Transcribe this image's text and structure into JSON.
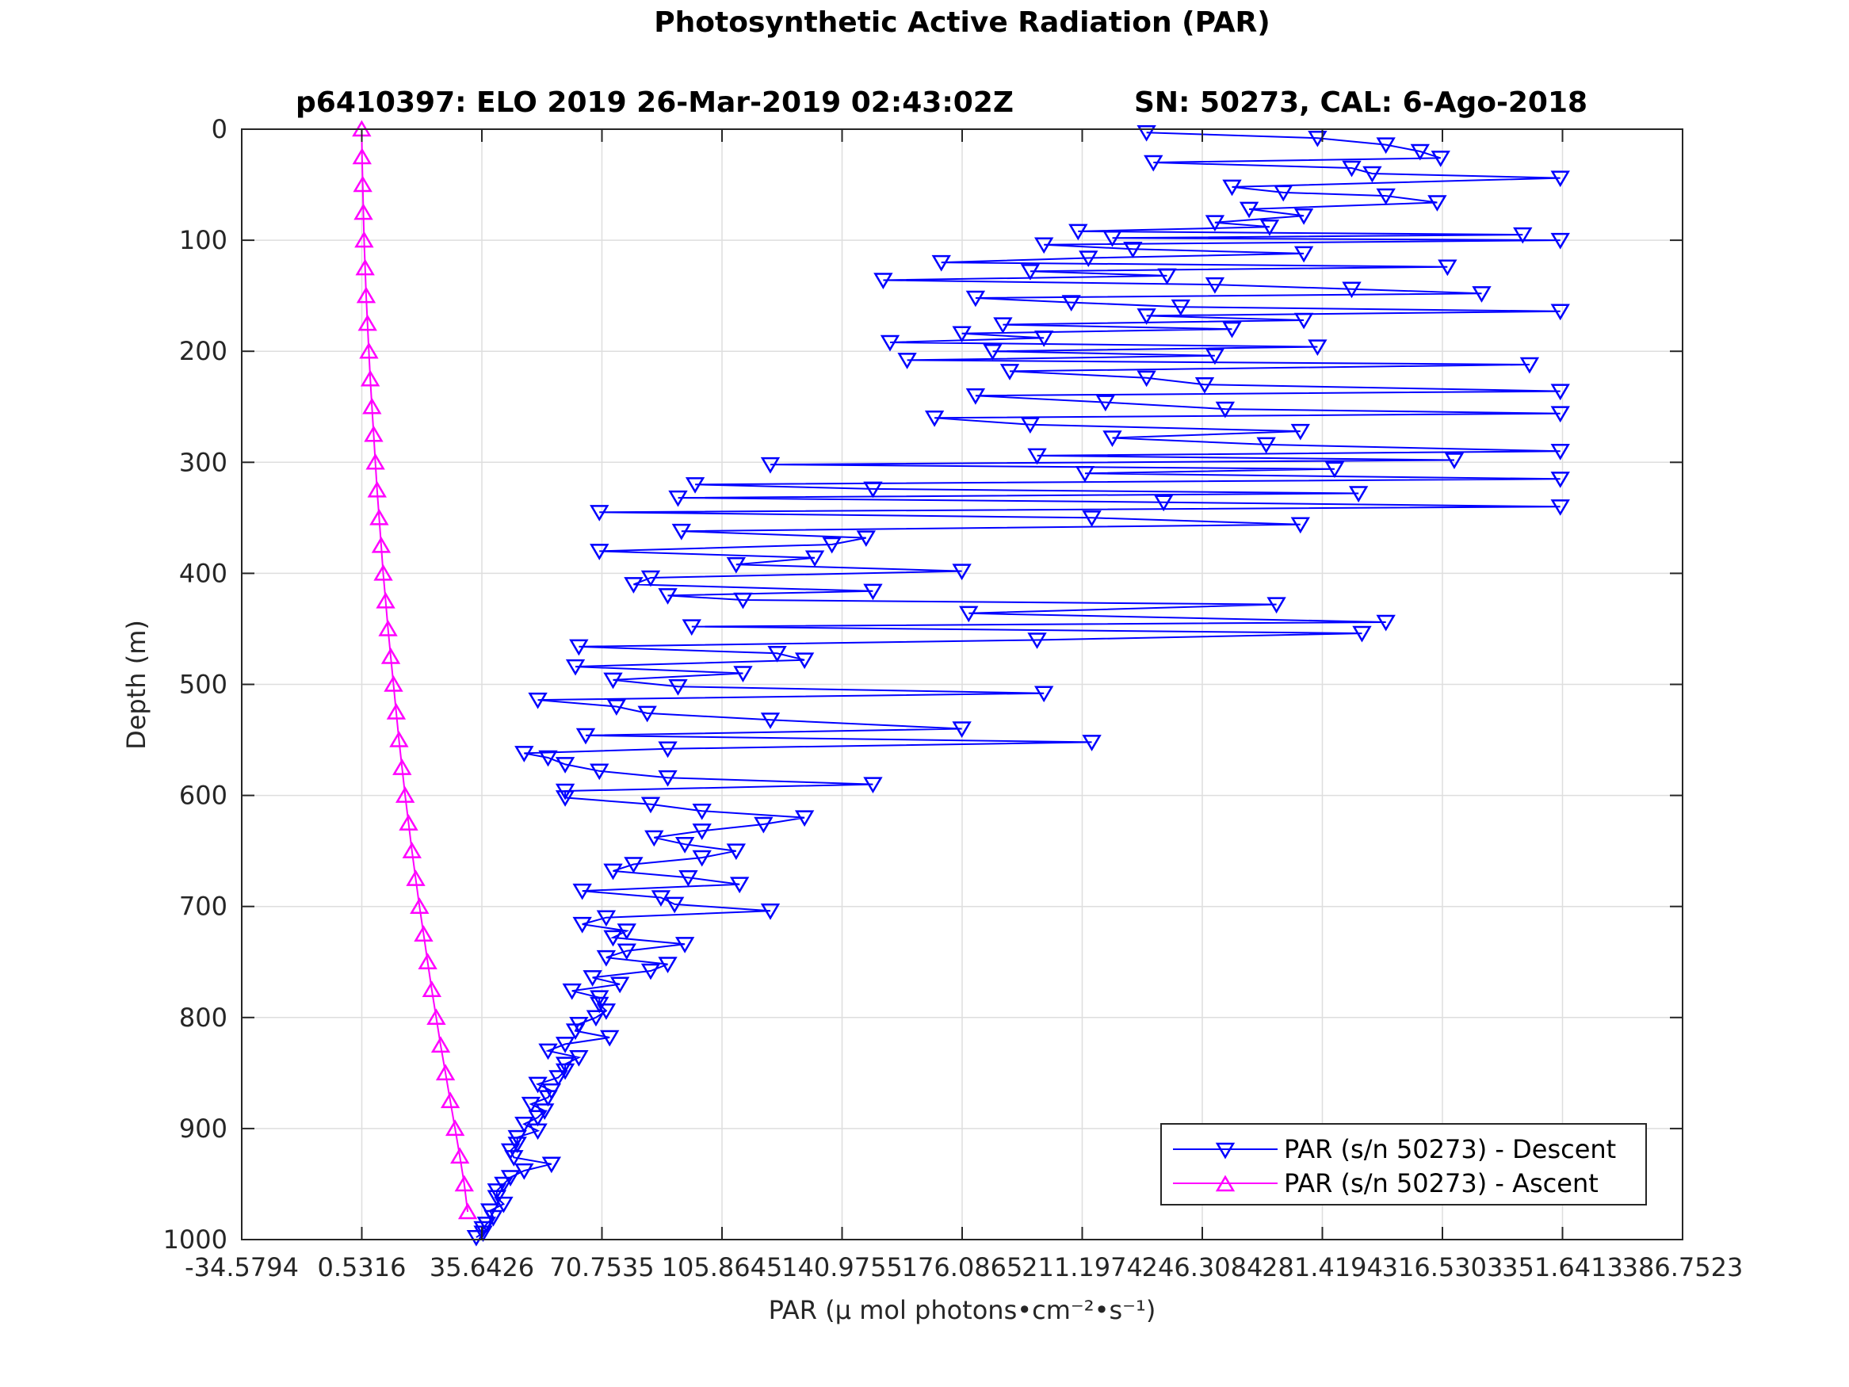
{
  "chart_data": {
    "type": "line",
    "title": "Photosynthetic Active Radiation (PAR)",
    "subtitle_left": "p6410397: ELO 2019 26-Mar-2019 02:43:02Z",
    "subtitle_right": "SN: 50273, CAL: 6-Ago-2018",
    "xlabel": "PAR (μ mol photons•cm⁻²•s⁻¹)",
    "ylabel": "Depth (m)",
    "xlim": [
      -34.5794,
      386.7523
    ],
    "ylim": [
      0,
      1000
    ],
    "y_reversed": true,
    "grid": true,
    "x_ticks": [
      -34.5794,
      0.5316,
      35.6426,
      70.7535,
      105.8645,
      140.9755,
      176.0865,
      211.1974,
      246.3084,
      281.4194,
      316.5303,
      351.6413,
      386.7523
    ],
    "x_tick_labels": [
      "-34.5794",
      "0.5316",
      "35.6426",
      "70.7535",
      "105.8645",
      "140.9755",
      "176.0865",
      "211.1974",
      "246.3084",
      "281.4194",
      "316.5303",
      "351.6413",
      "386.7523"
    ],
    "y_ticks": [
      0,
      100,
      200,
      300,
      400,
      500,
      600,
      700,
      800,
      900,
      1000
    ],
    "y_tick_labels": [
      "0",
      "100",
      "200",
      "300",
      "400",
      "500",
      "600",
      "700",
      "800",
      "900",
      "1000"
    ],
    "legend_position": "bottom-right",
    "series": [
      {
        "name": "PAR (s/n 50273) - Descent",
        "color": "#0000ff",
        "marker": "triangle-down",
        "x": [
          230,
          280,
          300,
          310,
          316,
          232,
          290,
          296,
          351,
          255,
          270,
          300,
          315,
          260,
          276,
          250,
          266,
          210,
          340,
          220,
          351,
          200,
          226,
          276,
          213,
          170,
          318,
          196,
          236,
          153,
          250,
          290,
          328,
          180,
          208,
          240,
          351,
          230,
          276,
          188,
          255,
          176,
          200,
          155,
          280,
          185,
          250,
          160,
          342,
          190,
          230,
          247,
          351,
          180,
          218,
          253,
          351,
          168,
          196,
          275,
          220,
          265,
          351,
          198,
          320,
          120,
          285,
          212,
          351,
          98,
          150,
          292,
          93,
          235,
          351,
          70,
          214,
          275,
          94,
          148,
          138,
          70,
          133,
          110,
          176,
          85,
          80,
          150,
          90,
          112,
          268,
          178,
          300,
          97,
          293,
          198,
          64,
          122,
          130,
          63,
          112,
          74,
          93,
          200,
          52,
          75,
          84,
          120,
          176,
          66,
          214,
          90,
          48,
          55,
          60,
          70,
          90,
          150,
          60,
          60,
          85,
          100,
          130,
          118,
          100,
          86,
          95,
          110,
          100,
          80,
          74,
          96,
          111,
          65,
          88,
          92,
          120,
          72,
          65,
          78,
          74,
          95,
          78,
          72,
          90,
          85,
          68,
          76,
          62,
          70,
          70,
          72,
          69,
          64,
          63,
          73,
          60,
          55,
          64,
          60,
          60,
          58,
          52,
          56,
          55,
          50,
          54,
          52,
          48,
          52,
          46,
          46,
          44,
          45,
          56,
          48,
          44,
          42,
          40,
          40,
          42,
          38,
          39,
          37,
          36,
          36,
          34
        ],
        "y": [
          3,
          8,
          14,
          20,
          26,
          30,
          35,
          40,
          44,
          52,
          57,
          60,
          66,
          72,
          78,
          84,
          88,
          92,
          95,
          98,
          100,
          104,
          108,
          112,
          116,
          120,
          124,
          128,
          132,
          136,
          140,
          144,
          148,
          152,
          156,
          160,
          164,
          168,
          172,
          176,
          180,
          184,
          188,
          192,
          196,
          200,
          204,
          208,
          212,
          218,
          224,
          230,
          236,
          240,
          246,
          252,
          256,
          260,
          266,
          272,
          278,
          284,
          290,
          294,
          298,
          302,
          306,
          310,
          315,
          320,
          324,
          328,
          332,
          336,
          340,
          345,
          350,
          356,
          362,
          368,
          374,
          380,
          386,
          392,
          398,
          404,
          410,
          416,
          420,
          424,
          428,
          436,
          444,
          448,
          454,
          460,
          466,
          472,
          478,
          484,
          490,
          496,
          502,
          508,
          514,
          520,
          526,
          532,
          540,
          546,
          552,
          558,
          562,
          566,
          572,
          578,
          584,
          590,
          596,
          602,
          608,
          614,
          620,
          626,
          632,
          638,
          644,
          650,
          656,
          662,
          668,
          674,
          680,
          686,
          692,
          698,
          704,
          710,
          716,
          722,
          728,
          734,
          740,
          746,
          752,
          758,
          764,
          770,
          776,
          782,
          788,
          794,
          800,
          806,
          812,
          818,
          824,
          830,
          836,
          842,
          848,
          854,
          860,
          866,
          872,
          878,
          884,
          890,
          896,
          902,
          908,
          914,
          920,
          926,
          932,
          938,
          944,
          950,
          956,
          962,
          968,
          974,
          980,
          986,
          990,
          994,
          998
        ]
      },
      {
        "name": "PAR (s/n 50273) - Ascent",
        "color": "#ff00ff",
        "marker": "triangle-up",
        "x": [
          0.5,
          0.6,
          0.8,
          1.0,
          1.2,
          1.5,
          1.8,
          2.2,
          2.6,
          3.0,
          3.5,
          4.0,
          4.5,
          5.0,
          5.6,
          6.2,
          6.8,
          7.5,
          8.2,
          9.0,
          9.8,
          10.6,
          11.4,
          12.3,
          13.2,
          14.2,
          15.2,
          16.3,
          17.4,
          18.6,
          19.8,
          21.0,
          22.3,
          23.6,
          25.0,
          26.4,
          27.8,
          29.2,
          30.5,
          31.5
        ],
        "y": [
          0,
          25,
          50,
          75,
          100,
          125,
          150,
          175,
          200,
          225,
          250,
          275,
          300,
          325,
          350,
          375,
          400,
          425,
          450,
          475,
          500,
          525,
          550,
          575,
          600,
          625,
          650,
          675,
          700,
          725,
          750,
          775,
          800,
          825,
          850,
          875,
          900,
          925,
          950,
          975
        ]
      }
    ]
  }
}
